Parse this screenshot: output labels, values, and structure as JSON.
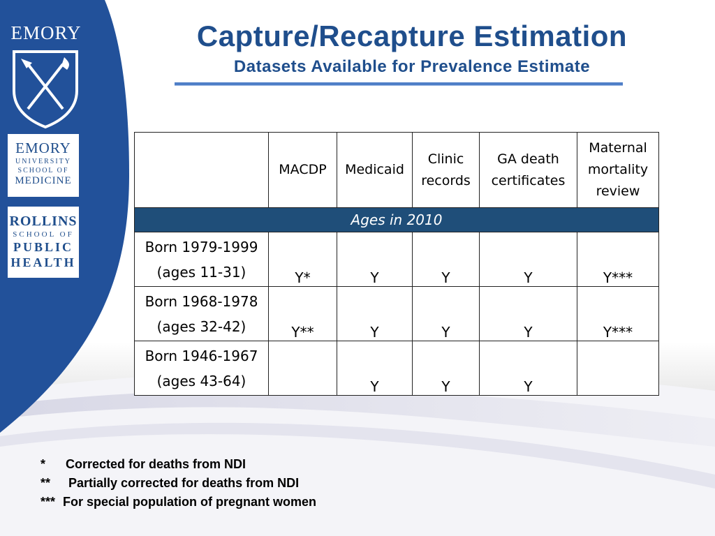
{
  "logos": {
    "emory": "EMORY",
    "medicine": [
      "EMORY",
      "UNIVERSITY",
      "SCHOOL OF",
      "MEDICINE"
    ],
    "rollins": [
      "ROLLINS",
      "SCHOOL OF",
      "PUBLIC",
      "HEALTH"
    ]
  },
  "title": "Capture/Recapture Estimation",
  "subtitle": "Datasets Available for Prevalence Estimate",
  "table": {
    "columns": [
      "",
      "MACDP",
      "Medicaid",
      "Clinic records",
      "GA death certificates",
      "Maternal mortality review"
    ],
    "section_label": "Ages in 2010",
    "rows": [
      {
        "label_line1": "Born 1979-1999",
        "label_line2": "(ages 11-31)",
        "cells": [
          "Y*",
          "Y",
          "Y",
          "Y",
          "Y***"
        ]
      },
      {
        "label_line1": "Born 1968-1978",
        "label_line2": "(ages 32-42)",
        "cells": [
          "Y**",
          "Y",
          "Y",
          "Y",
          "Y***"
        ]
      },
      {
        "label_line1": "Born 1946-1967",
        "label_line2": "(ages 43-64)",
        "cells": [
          "",
          "Y",
          "Y",
          "Y",
          ""
        ]
      }
    ]
  },
  "footnotes": [
    {
      "mark": "*",
      "text": "Corrected for deaths from NDI"
    },
    {
      "mark": "**",
      "text": "Partially corrected for deaths from NDI"
    },
    {
      "mark": "***",
      "text": "For special population of pregnant women"
    }
  ],
  "colors": {
    "brand_blue": "#1f4e8c",
    "section_fill": "#1f4e79",
    "band_blue": "#22519a"
  }
}
